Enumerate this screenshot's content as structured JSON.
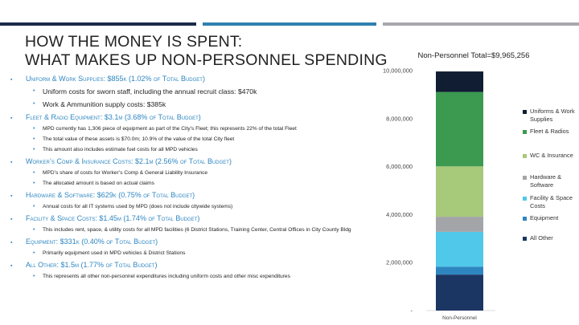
{
  "colors": {
    "accent_blue": "#2e86c1",
    "bar_dark": "#1a2b4a",
    "bar_mid": "#2f7fb0",
    "bar_gray": "#a7a9ac"
  },
  "title": {
    "line1": "How the Money is Spent:",
    "line2": "What makes up Non-Personnel Spending"
  },
  "bullets": [
    {
      "text": "Uniform & Work Supplies: $855k (1.02% of Total Budget)",
      "subs": [
        {
          "text": "Uniform costs for sworn staff, including the annual recruit class: $470k",
          "big": true
        },
        {
          "text": "Work & Ammunition supply costs: $385k",
          "big": true
        }
      ]
    },
    {
      "text": "Fleet & Radio Equipment: $3.1m (3.68% of Total Budget)",
      "subs": [
        {
          "text": "MPD currently has 1,306 piece of equipment as part of the City’s Fleet; this represents 22% of the total Fleet"
        },
        {
          "text": "The total value of these assets is $70.0m; 10.9% of the value of the total City fleet"
        },
        {
          "text": "This amount also includes estimate fuel costs for all MPD vehicles"
        }
      ]
    },
    {
      "text": "Worker’s Comp & Insurance Costs: $2.1m (2.56% of Total Budget)",
      "subs": [
        {
          "text": "MPD’s share of costs for Worker’s Comp & General Liability Insurance"
        },
        {
          "text": "The allocated amount is based on actual claims"
        }
      ]
    },
    {
      "text": "Hardware & Software: $629k (0.75% of Total Budget)",
      "subs": [
        {
          "text": "Annual costs for all IT systems used by MPD (does not include citywide systems)"
        }
      ]
    },
    {
      "text": "Facility & Space Costs: $1.45m (1.74% of Total Budget)",
      "subs": [
        {
          "text": "This includes rent, space, & utility costs for all MPD facilities (6 District Stations, Training Center, Central Offices in City County Bldg"
        }
      ]
    },
    {
      "text": "Equipment: $331k (0.40% of Total Budget)",
      "subs": [
        {
          "text": "Primarily equipment used in MPD vehicles & District Stations"
        }
      ]
    },
    {
      "text": "All Other: $1.5m (1.77% of Total Budget)",
      "subs": [
        {
          "text": "This represents all other non-personnel expenditures including uniform costs and other misc expenditures"
        }
      ]
    }
  ],
  "chart_data": {
    "type": "bar",
    "stacked": true,
    "title": "Non-Personnel Total=$9,965,256",
    "categories": [
      "Non-Personnel"
    ],
    "ylim": [
      0,
      10000000
    ],
    "yticks": [
      0,
      2000000,
      4000000,
      6000000,
      8000000,
      10000000
    ],
    "ytick_labels": [
      "-",
      "2,000,000",
      "4,000,000",
      "6,000,000",
      "8,000,000",
      "10,000,000"
    ],
    "grid": false,
    "legend_position": "right",
    "series": [
      {
        "name": "All Other",
        "values": [
          1500000
        ],
        "color": "#1c3664"
      },
      {
        "name": "Equipment",
        "values": [
          331000
        ],
        "color": "#2e86c1"
      },
      {
        "name": "Facility & Space Costs",
        "values": [
          1450000
        ],
        "color": "#4fc8ea"
      },
      {
        "name": "Hardware & Software",
        "values": [
          629000
        ],
        "color": "#a3a5a8"
      },
      {
        "name": "WC & Insurance",
        "values": [
          2100000
        ],
        "color": "#a6c97a"
      },
      {
        "name": "Fleet & Radios",
        "values": [
          3100000
        ],
        "color": "#3b9a4f"
      },
      {
        "name": "Uniforms & Work Supplies",
        "values": [
          855000
        ],
        "color": "#111d33"
      }
    ]
  }
}
